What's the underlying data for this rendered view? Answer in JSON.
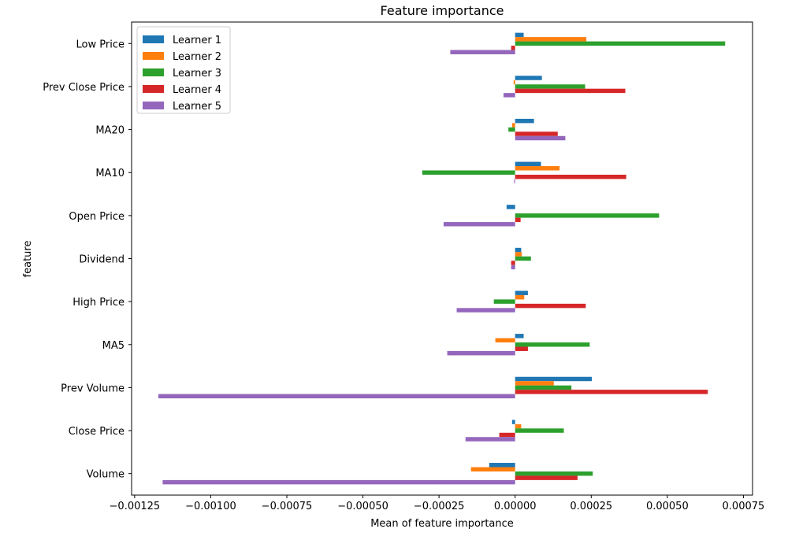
{
  "chart_data": {
    "type": "bar",
    "orientation": "horizontal",
    "title": "Feature importance",
    "xlabel": "Mean of feature importance",
    "ylabel": "feature",
    "xlim": [
      -0.00126,
      0.00078
    ],
    "xticks": [
      -0.00125,
      -0.001,
      -0.00075,
      -0.0005,
      -0.00025,
      0,
      0.00025,
      0.0005,
      0.00075
    ],
    "xtick_labels": [
      "−0.00125",
      "−0.00100",
      "−0.00075",
      "−0.00050",
      "−0.00025",
      "0.00000",
      "0.00025",
      "0.00050",
      "0.00075"
    ],
    "grid": false,
    "legend_position": "top-left",
    "categories": [
      "Low Price",
      "Prev Close Price",
      "MA20",
      "MA10",
      "Open Price",
      "Dividend",
      "High Price",
      "MA5",
      "Prev Volume",
      "Close Price",
      "Volume"
    ],
    "series": [
      {
        "name": "Learner 1",
        "color": "#1f77b4",
        "values": [
          2.8e-05,
          8.8e-05,
          6.2e-05,
          8.5e-05,
          -2.8e-05,
          2e-05,
          4.2e-05,
          2.8e-05,
          0.000252,
          -1e-05,
          -8.5e-05
        ]
      },
      {
        "name": "Learner 2",
        "color": "#ff7f0e",
        "values": [
          0.000234,
          -5e-06,
          -1e-05,
          0.000146,
          0.0,
          2.2e-05,
          3e-05,
          -6.5e-05,
          0.000127,
          2e-05,
          -0.000145
        ]
      },
      {
        "name": "Learner 3",
        "color": "#2ca02c",
        "values": [
          0.00069,
          0.00023,
          -2.2e-05,
          -0.000305,
          0.000473,
          5.2e-05,
          -7e-05,
          0.000245,
          0.000185,
          0.00016,
          0.000255
        ]
      },
      {
        "name": "Learner 4",
        "color": "#d62728",
        "values": [
          -1.3e-05,
          0.000362,
          0.00014,
          0.000365,
          1.8e-05,
          -1.3e-05,
          0.000232,
          4.2e-05,
          0.000633,
          -5.2e-05,
          0.000205
        ]
      },
      {
        "name": "Learner 5",
        "color": "#9467bd",
        "values": [
          -0.000213,
          -3.8e-05,
          0.000165,
          -3e-06,
          -0.000235,
          -1.3e-05,
          -0.000192,
          -0.000223,
          -0.001172,
          -0.000163,
          -0.001158
        ]
      }
    ]
  }
}
